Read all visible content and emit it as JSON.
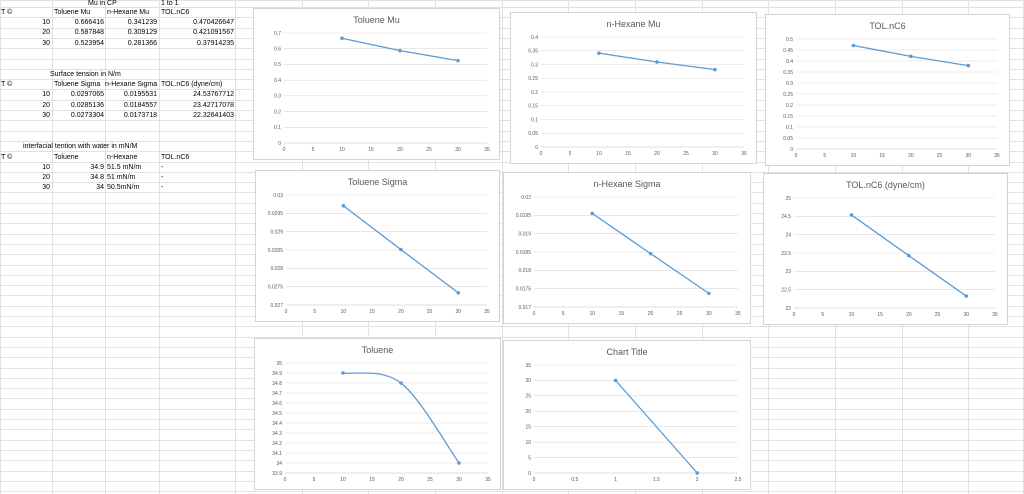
{
  "sheet": {
    "mu_header": "Mu in CP",
    "mu_ratio_header": "1 to 1",
    "mu_cols": [
      "T ©",
      "Toluene Mu",
      "n-Hexane Mu",
      "TOL.nC6"
    ],
    "mu_rows": [
      [
        "10",
        "0.666416",
        "0.341239",
        "0.470426647"
      ],
      [
        "20",
        "0.587848",
        "0.309129",
        "0.421091567"
      ],
      [
        "30",
        "0.523954",
        "0.281366",
        "0.37914235"
      ]
    ],
    "st_header": "Surface tension in N/m",
    "st_cols": [
      "T ©",
      "Toluene Sigma",
      "n-Hexane Sigma",
      "TOL.nC6 (dyne/cm)"
    ],
    "st_rows": [
      [
        "10",
        "0.0297065",
        "0.0195531",
        "24.53767712"
      ],
      [
        "20",
        "0.0285136",
        "0.0184557",
        "23.42717078"
      ],
      [
        "30",
        "0.0273304",
        "0.0173718",
        "22.32641403"
      ]
    ],
    "ift_header": "interfacial tention with water in mN/M",
    "ift_cols": [
      "T ©",
      "Toluene",
      "n-Hexane",
      "TOL.nC6"
    ],
    "ift_rows": [
      [
        "10",
        "34.9",
        "51.5 mN/m",
        "-"
      ],
      [
        "20",
        "34.8",
        "51 mN/m",
        "-"
      ],
      [
        "30",
        "34",
        "50.5mN/m",
        "-"
      ]
    ]
  },
  "chart_data": [
    {
      "type": "line",
      "title": "Toluene Mu",
      "x": [
        10,
        20,
        30
      ],
      "y": [
        0.666416,
        0.587848,
        0.523954
      ],
      "xlim": [
        0,
        35
      ],
      "xticks": [
        "0",
        "5",
        "10",
        "15",
        "20",
        "25",
        "30",
        "35"
      ],
      "ylim": [
        0,
        0.7
      ],
      "yticks": [
        "0",
        "0.1",
        "0.2",
        "0.3",
        "0.4",
        "0.5",
        "0.6",
        "0.7"
      ],
      "grid": true,
      "smooth": false
    },
    {
      "type": "line",
      "title": "n-Hexane Mu",
      "x": [
        10,
        20,
        30
      ],
      "y": [
        0.341239,
        0.309129,
        0.281366
      ],
      "xlim": [
        0,
        35
      ],
      "xticks": [
        "0",
        "5",
        "10",
        "15",
        "20",
        "25",
        "30",
        "35"
      ],
      "ylim": [
        0,
        0.4
      ],
      "yticks": [
        "0",
        "0.05",
        "0.1",
        "0.15",
        "0.2",
        "0.25",
        "0.3",
        "0.35",
        "0.4"
      ],
      "grid": true,
      "smooth": false
    },
    {
      "type": "line",
      "title": "TOL.nC6",
      "x": [
        10,
        20,
        30
      ],
      "y": [
        0.470426647,
        0.421091567,
        0.37914235
      ],
      "xlim": [
        0,
        35
      ],
      "xticks": [
        "0",
        "5",
        "10",
        "15",
        "20",
        "25",
        "30",
        "35"
      ],
      "ylim": [
        0,
        0.5
      ],
      "yticks": [
        "0",
        "0.05",
        "0.1",
        "0.15",
        "0.2",
        "0.25",
        "0.3",
        "0.35",
        "0.4",
        "0.45",
        "0.5"
      ],
      "grid": true,
      "smooth": false
    },
    {
      "type": "line",
      "title": "Toluene Sigma",
      "x": [
        10,
        20,
        30
      ],
      "y": [
        0.0297065,
        0.0285136,
        0.0273304
      ],
      "xlim": [
        0,
        35
      ],
      "xticks": [
        "0",
        "5",
        "10",
        "15",
        "20",
        "25",
        "30",
        "35"
      ],
      "ylim": [
        0.027,
        0.03
      ],
      "yticks": [
        "0.027",
        "0.0275",
        "0.028",
        "0.0285",
        "0.029",
        "0.0295",
        "0.03"
      ],
      "grid": true,
      "smooth": false
    },
    {
      "type": "line",
      "title": "n-Hexane Sigma",
      "x": [
        10,
        20,
        30
      ],
      "y": [
        0.0195531,
        0.0184557,
        0.0173718
      ],
      "xlim": [
        0,
        35
      ],
      "xticks": [
        "0",
        "5",
        "10",
        "15",
        "20",
        "25",
        "30",
        "35"
      ],
      "ylim": [
        0.017,
        0.02
      ],
      "yticks": [
        "0.017",
        "0.0175",
        "0.018",
        "0.0185",
        "0.019",
        "0.0195",
        "0.02"
      ],
      "grid": true,
      "smooth": false
    },
    {
      "type": "line",
      "title": "TOL.nC6 (dyne/cm)",
      "x": [
        10,
        20,
        30
      ],
      "y": [
        24.53767712,
        23.42717078,
        22.32641403
      ],
      "xlim": [
        0,
        35
      ],
      "xticks": [
        "0",
        "5",
        "10",
        "15",
        "20",
        "25",
        "30",
        "35"
      ],
      "ylim": [
        22,
        25
      ],
      "yticks": [
        "22",
        "22.5",
        "23",
        "23.5",
        "24",
        "24.5",
        "25"
      ],
      "grid": true,
      "smooth": false
    },
    {
      "type": "line",
      "title": "Toluene",
      "x": [
        10,
        20,
        30
      ],
      "y": [
        34.9,
        34.8,
        34
      ],
      "xlim": [
        0,
        35
      ],
      "xticks": [
        "0",
        "5",
        "10",
        "15",
        "20",
        "25",
        "30",
        "35"
      ],
      "ylim": [
        33.9,
        35
      ],
      "yticks": [
        "33.9",
        "34",
        "34.1",
        "34.2",
        "34.3",
        "34.4",
        "34.5",
        "34.6",
        "34.7",
        "34.8",
        "34.9",
        "35"
      ],
      "grid": true,
      "smooth": true
    },
    {
      "type": "line",
      "title": "Chart Title",
      "x": [
        1,
        2
      ],
      "y": [
        30,
        0
      ],
      "xlim": [
        0,
        2.5
      ],
      "xticks": [
        "0",
        "0.5",
        "1",
        "1.5",
        "2",
        "2.5"
      ],
      "ylim": [
        0,
        35
      ],
      "yticks": [
        "0",
        "5",
        "10",
        "15",
        "20",
        "25",
        "30",
        "35"
      ],
      "grid": true,
      "smooth": false
    }
  ],
  "colors": {
    "line": "#5b9bd5",
    "grid": "#d9d9d9",
    "axis": "#bfbfbf",
    "text": "#595959",
    "cellgrid": "#e1e1e1"
  }
}
